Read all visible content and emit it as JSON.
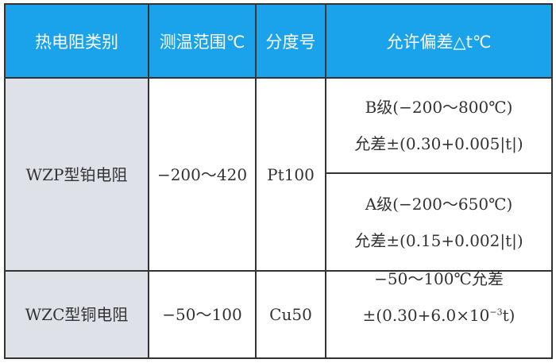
{
  "header": [
    "热电阻类别",
    "测温范围℃",
    "分度号",
    "允许偏差△t℃"
  ],
  "rows": [
    {
      "type": "WZP型铂电阻",
      "range": "−200～420",
      "graduation": "Pt100",
      "tolerances": [
        {
          "class": "B级(−200～800℃)",
          "formula": "允差±(0.30+0.005|t|)"
        },
        {
          "class": "A级(−200～650℃)",
          "formula": "允差±(0.15+0.002|t|)"
        }
      ]
    },
    {
      "type": "WZC型铜电阻",
      "range": "−50～100",
      "graduation": "Cu50",
      "tolerance_line1": "−50～100℃允差",
      "tolerance_line2_pre": "±(0.30+6.0×10",
      "tolerance_line2_sup": "−3",
      "tolerance_line2_post": "t)"
    }
  ],
  "colors": {
    "header_bg": "#1aa3ea",
    "first_col_bg": "#dfe1e9",
    "border": "#333333"
  }
}
